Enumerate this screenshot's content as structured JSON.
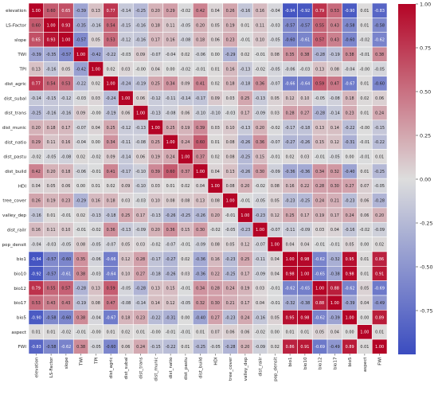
{
  "chart_data": {
    "type": "heatmap",
    "title": "",
    "xlabel": "",
    "ylabel": "",
    "labels": [
      "elevation",
      "LS-Factor",
      "slope",
      "TWI",
      "TPI",
      "dist_agric",
      "dist_subal",
      "dist_trans",
      "dist_munic",
      "dist_natio",
      "dist_pastu",
      "dist_build",
      "HDI",
      "tree_cover",
      "valley_dep",
      "dist_railr",
      "pop_densit",
      "bio1",
      "bio10",
      "bio12",
      "bio17",
      "bio5",
      "aspect",
      "FWI"
    ],
    "value_labels": [
      [
        "1.00",
        "0.60",
        "0.65",
        "-0.39",
        "0.13",
        "0.77",
        "-0.14",
        "-0.25",
        "0.20",
        "0.29",
        "-0.02",
        "0.42",
        "0.04",
        "0.26",
        "-0.16",
        "0.16",
        "-0.04",
        "-0.94",
        "-0.92",
        "0.79",
        "0.53",
        "-0.90",
        "0.01",
        "-0.83"
      ],
      [
        "0.60",
        "1.00",
        "0.93",
        "-0.35",
        "-0.16",
        "0.54",
        "-0.15",
        "-0.16",
        "0.18",
        "0.11",
        "-0.05",
        "0.20",
        "0.05",
        "0.19",
        "0.01",
        "0.11",
        "-0.03",
        "-0.57",
        "-0.57",
        "0.55",
        "0.43",
        "-0.58",
        "0.01",
        "-0.58"
      ],
      [
        "0.65",
        "0.93",
        "1.00",
        "-0.57",
        "0.05",
        "0.53",
        "-0.12",
        "-0.16",
        "0.17",
        "0.16",
        "-0.08",
        "0.18",
        "0.06",
        "0.23",
        "-0.01",
        "0.10",
        "-0.05",
        "-0.60",
        "-0.61",
        "0.57",
        "0.43",
        "-0.60",
        "-0.02",
        "-0.62"
      ],
      [
        "-0.39",
        "-0.35",
        "-0.57",
        "1.00",
        "-0.42",
        "-0.22",
        "-0.03",
        "0.09",
        "-0.07",
        "-0.04",
        "0.02",
        "-0.06",
        "0.00",
        "-0.29",
        "0.02",
        "-0.01",
        "0.08",
        "0.35",
        "0.38",
        "-0.28",
        "-0.19",
        "0.38",
        "-0.01",
        "0.38"
      ],
      [
        "0.13",
        "-0.16",
        "0.05",
        "-0.42",
        "1.00",
        "0.02",
        "0.03",
        "-0.00",
        "0.04",
        "0.00",
        "-0.02",
        "-0.01",
        "0.01",
        "0.16",
        "-0.13",
        "-0.02",
        "-0.05",
        "-0.06",
        "-0.03",
        "0.13",
        "0.08",
        "-0.04",
        "-0.00",
        "-0.05"
      ],
      [
        "0.77",
        "0.54",
        "0.53",
        "-0.22",
        "0.02",
        "1.00",
        "-0.24",
        "-0.19",
        "0.25",
        "0.34",
        "0.09",
        "0.41",
        "0.02",
        "0.18",
        "-0.18",
        "0.36",
        "-0.07",
        "-0.66",
        "-0.64",
        "0.59",
        "0.47",
        "-0.67",
        "0.01",
        "-0.60"
      ],
      [
        "-0.14",
        "-0.15",
        "-0.12",
        "-0.03",
        "0.03",
        "-0.24",
        "1.00",
        "0.06",
        "-0.12",
        "-0.11",
        "-0.14",
        "-0.17",
        "0.09",
        "0.03",
        "0.25",
        "-0.13",
        "0.05",
        "0.12",
        "0.10",
        "-0.05",
        "-0.08",
        "0.18",
        "0.02",
        "0.06"
      ],
      [
        "-0.25",
        "-0.16",
        "-0.16",
        "0.09",
        "-0.00",
        "-0.19",
        "0.06",
        "1.00",
        "-0.13",
        "-0.08",
        "0.06",
        "-0.10",
        "-0.10",
        "-0.03",
        "0.17",
        "-0.09",
        "0.03",
        "0.28",
        "0.27",
        "-0.28",
        "-0.14",
        "0.23",
        "0.01",
        "0.24"
      ],
      [
        "0.20",
        "0.18",
        "0.17",
        "-0.07",
        "0.04",
        "0.25",
        "-0.12",
        "-0.13",
        "1.00",
        "0.25",
        "0.19",
        "0.39",
        "0.03",
        "0.10",
        "-0.13",
        "0.20",
        "-0.02",
        "-0.17",
        "-0.18",
        "0.13",
        "0.14",
        "-0.22",
        "-0.00",
        "-0.15"
      ],
      [
        "0.29",
        "0.11",
        "0.16",
        "-0.04",
        "0.00",
        "0.34",
        "-0.11",
        "-0.08",
        "0.25",
        "1.00",
        "0.24",
        "0.60",
        "0.01",
        "0.08",
        "-0.26",
        "0.36",
        "-0.07",
        "-0.27",
        "-0.26",
        "0.15",
        "0.12",
        "-0.31",
        "-0.01",
        "-0.22"
      ],
      [
        "-0.02",
        "-0.05",
        "-0.08",
        "0.02",
        "-0.02",
        "0.09",
        "-0.14",
        "0.06",
        "0.19",
        "0.24",
        "1.00",
        "0.37",
        "0.02",
        "0.08",
        "-0.25",
        "0.15",
        "-0.01",
        "0.02",
        "0.03",
        "-0.01",
        "-0.05",
        "0.00",
        "-0.01",
        "0.01"
      ],
      [
        "0.42",
        "0.20",
        "0.18",
        "-0.06",
        "-0.01",
        "0.41",
        "-0.17",
        "-0.10",
        "0.39",
        "0.60",
        "0.37",
        "1.00",
        "0.04",
        "0.13",
        "-0.26",
        "0.30",
        "-0.09",
        "-0.36",
        "-0.36",
        "0.34",
        "0.32",
        "-0.40",
        "0.01",
        "-0.25"
      ],
      [
        "0.04",
        "0.05",
        "0.06",
        "0.00",
        "0.01",
        "0.02",
        "0.09",
        "-0.10",
        "0.03",
        "0.01",
        "0.02",
        "0.04",
        "1.00",
        "0.08",
        "0.20",
        "-0.02",
        "0.08",
        "0.16",
        "0.22",
        "0.28",
        "0.30",
        "0.27",
        "0.07",
        "-0.05"
      ],
      [
        "0.26",
        "0.19",
        "0.23",
        "-0.29",
        "0.16",
        "0.18",
        "0.03",
        "-0.03",
        "0.10",
        "0.08",
        "0.08",
        "0.13",
        "0.08",
        "1.00",
        "-0.01",
        "-0.05",
        "0.05",
        "-0.23",
        "-0.25",
        "0.24",
        "0.21",
        "-0.23",
        "0.06",
        "-0.28"
      ],
      [
        "-0.16",
        "0.01",
        "-0.01",
        "0.02",
        "-0.13",
        "-0.18",
        "0.25",
        "0.17",
        "-0.13",
        "-0.26",
        "-0.25",
        "-0.26",
        "0.20",
        "-0.01",
        "1.00",
        "-0.23",
        "0.12",
        "0.25",
        "0.17",
        "0.19",
        "0.17",
        "0.24",
        "0.06",
        "0.20"
      ],
      [
        "0.16",
        "0.11",
        "0.10",
        "-0.01",
        "-0.02",
        "0.36",
        "-0.13",
        "-0.09",
        "0.20",
        "0.36",
        "0.15",
        "0.30",
        "-0.02",
        "-0.05",
        "-0.23",
        "1.00",
        "-0.07",
        "-0.11",
        "-0.09",
        "0.03",
        "0.04",
        "-0.16",
        "-0.02",
        "-0.09"
      ],
      [
        "-0.04",
        "-0.03",
        "-0.05",
        "0.08",
        "-0.05",
        "-0.07",
        "0.05",
        "0.03",
        "-0.02",
        "-0.07",
        "-0.01",
        "-0.09",
        "0.08",
        "0.05",
        "0.12",
        "-0.07",
        "1.00",
        "0.04",
        "0.04",
        "-0.01",
        "-0.01",
        "0.05",
        "0.00",
        "0.02"
      ],
      [
        "-0.94",
        "-0.57",
        "-0.60",
        "0.35",
        "-0.06",
        "-0.66",
        "0.12",
        "0.28",
        "-0.17",
        "-0.27",
        "0.02",
        "-0.36",
        "0.16",
        "-0.23",
        "0.25",
        "-0.11",
        "0.04",
        "1.00",
        "0.98",
        "-0.62",
        "-0.32",
        "0.95",
        "0.01",
        "0.86"
      ],
      [
        "-0.92",
        "-0.57",
        "-0.61",
        "0.38",
        "-0.03",
        "-0.64",
        "0.10",
        "0.27",
        "-0.18",
        "-0.26",
        "0.03",
        "-0.36",
        "0.22",
        "-0.25",
        "0.17",
        "-0.09",
        "0.04",
        "0.98",
        "1.00",
        "-0.65",
        "-0.38",
        "0.98",
        "0.01",
        "0.91"
      ],
      [
        "0.79",
        "0.55",
        "0.57",
        "-0.28",
        "0.13",
        "0.59",
        "-0.05",
        "-0.28",
        "0.13",
        "0.15",
        "-0.01",
        "0.34",
        "0.28",
        "0.24",
        "0.19",
        "0.03",
        "-0.01",
        "-0.62",
        "-0.65",
        "1.00",
        "0.88",
        "-0.62",
        "0.05",
        "-0.69"
      ],
      [
        "0.53",
        "0.43",
        "0.43",
        "-0.19",
        "0.08",
        "0.47",
        "-0.08",
        "-0.14",
        "0.14",
        "0.12",
        "-0.05",
        "0.32",
        "0.30",
        "0.21",
        "0.17",
        "0.04",
        "-0.01",
        "-0.32",
        "-0.38",
        "0.88",
        "1.00",
        "-0.39",
        "0.04",
        "-0.49"
      ],
      [
        "-0.90",
        "-0.58",
        "-0.60",
        "0.38",
        "-0.04",
        "-0.67",
        "0.18",
        "0.23",
        "-0.22",
        "-0.31",
        "0.00",
        "-0.40",
        "0.27",
        "-0.23",
        "0.24",
        "-0.16",
        "0.05",
        "0.95",
        "0.98",
        "-0.62",
        "-0.39",
        "1.00",
        "0.00",
        "0.89"
      ],
      [
        "0.01",
        "0.01",
        "-0.02",
        "-0.01",
        "-0.00",
        "0.01",
        "0.02",
        "0.01",
        "-0.00",
        "-0.01",
        "-0.01",
        "0.01",
        "0.07",
        "0.06",
        "0.06",
        "-0.02",
        "0.00",
        "0.01",
        "0.01",
        "0.05",
        "0.04",
        "0.00",
        "1.00",
        "0.01"
      ],
      [
        "-0.83",
        "-0.58",
        "-0.62",
        "0.38",
        "-0.05",
        "-0.60",
        "0.06",
        "0.24",
        "-0.15",
        "-0.22",
        "0.01",
        "-0.25",
        "-0.05",
        "-0.28",
        "0.20",
        "-0.09",
        "0.02",
        "0.86",
        "0.91",
        "-0.69",
        "-0.49",
        "0.89",
        "0.01",
        "1.00"
      ]
    ],
    "colormap": "coolwarm",
    "vmin": -1,
    "vmax": 1,
    "colorbar_ticks": [
      "1.00",
      "0.75",
      "0.50",
      "0.25",
      "0.00",
      "-0.25",
      "-0.50",
      "-0.75"
    ],
    "colors": {
      "low": "#3b4cc0",
      "mid": "#dddddd",
      "high": "#b40426"
    }
  }
}
